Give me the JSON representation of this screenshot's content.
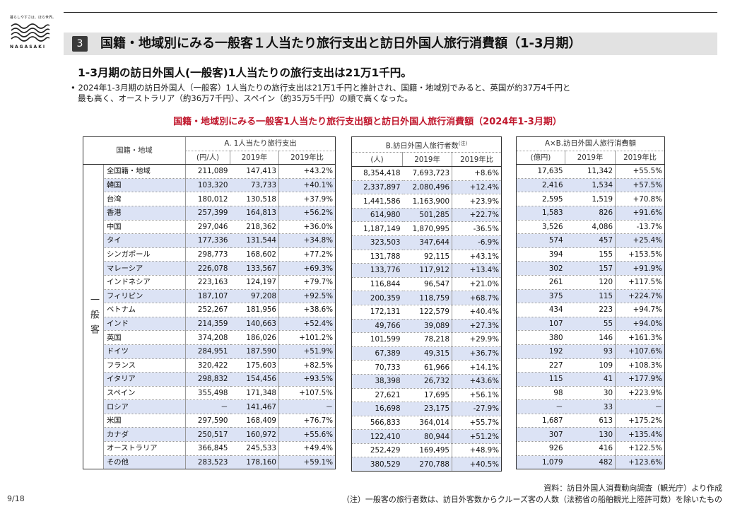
{
  "logo": {
    "tagline": "暮らしやすさは、ほら世界。",
    "wordmark": "NAGASAKI"
  },
  "section": {
    "number": "3",
    "title": "国籍・地域別にみる一般客１人当たり旅行支出と訪日外国人旅行消費額（1-3月期）"
  },
  "headline": "1-3月期の訪日外国人(一般客)1人当たりの旅行支出は21万1千円。",
  "bullet": {
    "line1": "• 2024年1-3月期の訪日外国人（一般客）1人当たりの旅行支出は21万1千円と推計され、国籍・地域別でみると、英国が約37万4千円と",
    "line2": "最も高く、オーストラリア（約36万7千円）、スペイン（約35万5千円）の順で高くなった。"
  },
  "table_title": "国籍・地域別にみる一般客1人当たり旅行支出額と訪日外国人旅行消費額（2024年1-3月期）",
  "table": {
    "category_header": "国籍・地域",
    "group_label": "一般客",
    "blockA": {
      "title": "A.  1人当たり旅行支出",
      "unit": "(円/人)",
      "col2019": "2019年",
      "colRatio": "2019年比"
    },
    "blockB": {
      "title": "B.訪日外国人旅行者数",
      "note": "(注)",
      "unit": "(人)",
      "col2019": "2019年",
      "colRatio": "2019年比"
    },
    "blockC": {
      "title": "A×B.訪日外国人旅行消費額",
      "unit": "(億円)",
      "col2019": "2019年",
      "colRatio": "2019年比"
    },
    "rows": [
      {
        "name": "全国籍・地域",
        "hl": false,
        "a": [
          "211,089",
          "147,413",
          "+43.2%"
        ],
        "b": [
          "8,354,418",
          "7,693,723",
          "+8.6%"
        ],
        "c": [
          "17,635",
          "11,342",
          "+55.5%"
        ]
      },
      {
        "name": "韓国",
        "hl": true,
        "a": [
          "103,320",
          "73,733",
          "+40.1%"
        ],
        "b": [
          "2,337,897",
          "2,080,496",
          "+12.4%"
        ],
        "c": [
          "2,416",
          "1,534",
          "+57.5%"
        ]
      },
      {
        "name": "台湾",
        "hl": false,
        "a": [
          "180,012",
          "130,518",
          "+37.9%"
        ],
        "b": [
          "1,441,586",
          "1,163,900",
          "+23.9%"
        ],
        "c": [
          "2,595",
          "1,519",
          "+70.8%"
        ]
      },
      {
        "name": "香港",
        "hl": true,
        "a": [
          "257,399",
          "164,813",
          "+56.2%"
        ],
        "b": [
          "614,980",
          "501,285",
          "+22.7%"
        ],
        "c": [
          "1,583",
          "826",
          "+91.6%"
        ]
      },
      {
        "name": "中国",
        "hl": false,
        "a": [
          "297,046",
          "218,362",
          "+36.0%"
        ],
        "b": [
          "1,187,149",
          "1,870,995",
          "-36.5%"
        ],
        "c": [
          "3,526",
          "4,086",
          "-13.7%"
        ]
      },
      {
        "name": "タイ",
        "hl": true,
        "a": [
          "177,336",
          "131,544",
          "+34.8%"
        ],
        "b": [
          "323,503",
          "347,644",
          "-6.9%"
        ],
        "c": [
          "574",
          "457",
          "+25.4%"
        ]
      },
      {
        "name": "シンガポール",
        "hl": false,
        "a": [
          "298,773",
          "168,602",
          "+77.2%"
        ],
        "b": [
          "131,788",
          "92,115",
          "+43.1%"
        ],
        "c": [
          "394",
          "155",
          "+153.5%"
        ]
      },
      {
        "name": "マレーシア",
        "hl": true,
        "a": [
          "226,078",
          "133,567",
          "+69.3%"
        ],
        "b": [
          "133,776",
          "117,912",
          "+13.4%"
        ],
        "c": [
          "302",
          "157",
          "+91.9%"
        ]
      },
      {
        "name": "インドネシア",
        "hl": false,
        "a": [
          "223,163",
          "124,197",
          "+79.7%"
        ],
        "b": [
          "116,844",
          "96,547",
          "+21.0%"
        ],
        "c": [
          "261",
          "120",
          "+117.5%"
        ]
      },
      {
        "name": "フィリピン",
        "hl": true,
        "a": [
          "187,107",
          "97,208",
          "+92.5%"
        ],
        "b": [
          "200,359",
          "118,759",
          "+68.7%"
        ],
        "c": [
          "375",
          "115",
          "+224.7%"
        ]
      },
      {
        "name": "ベトナム",
        "hl": false,
        "a": [
          "252,267",
          "181,956",
          "+38.6%"
        ],
        "b": [
          "172,131",
          "122,579",
          "+40.4%"
        ],
        "c": [
          "434",
          "223",
          "+94.7%"
        ]
      },
      {
        "name": "インド",
        "hl": true,
        "a": [
          "214,359",
          "140,663",
          "+52.4%"
        ],
        "b": [
          "49,766",
          "39,089",
          "+27.3%"
        ],
        "c": [
          "107",
          "55",
          "+94.0%"
        ]
      },
      {
        "name": "英国",
        "hl": false,
        "a": [
          "374,208",
          "186,026",
          "+101.2%"
        ],
        "b": [
          "101,599",
          "78,218",
          "+29.9%"
        ],
        "c": [
          "380",
          "146",
          "+161.3%"
        ]
      },
      {
        "name": "ドイツ",
        "hl": true,
        "a": [
          "284,951",
          "187,590",
          "+51.9%"
        ],
        "b": [
          "67,389",
          "49,315",
          "+36.7%"
        ],
        "c": [
          "192",
          "93",
          "+107.6%"
        ]
      },
      {
        "name": "フランス",
        "hl": false,
        "a": [
          "320,422",
          "175,603",
          "+82.5%"
        ],
        "b": [
          "70,733",
          "61,966",
          "+14.1%"
        ],
        "c": [
          "227",
          "109",
          "+108.3%"
        ]
      },
      {
        "name": "イタリア",
        "hl": true,
        "a": [
          "298,832",
          "154,456",
          "+93.5%"
        ],
        "b": [
          "38,398",
          "26,732",
          "+43.6%"
        ],
        "c": [
          "115",
          "41",
          "+177.9%"
        ]
      },
      {
        "name": "スペイン",
        "hl": false,
        "a": [
          "355,498",
          "171,348",
          "+107.5%"
        ],
        "b": [
          "27,621",
          "17,695",
          "+56.1%"
        ],
        "c": [
          "98",
          "30",
          "+223.9%"
        ]
      },
      {
        "name": "ロシア",
        "hl": true,
        "a": [
          "－",
          "141,467",
          "－"
        ],
        "b": [
          "16,698",
          "23,175",
          "-27.9%"
        ],
        "c": [
          "－",
          "33",
          "－"
        ]
      },
      {
        "name": "米国",
        "hl": false,
        "a": [
          "297,590",
          "168,409",
          "+76.7%"
        ],
        "b": [
          "566,833",
          "364,014",
          "+55.7%"
        ],
        "c": [
          "1,687",
          "613",
          "+175.2%"
        ]
      },
      {
        "name": "カナダ",
        "hl": true,
        "a": [
          "250,517",
          "160,972",
          "+55.6%"
        ],
        "b": [
          "122,410",
          "80,944",
          "+51.2%"
        ],
        "c": [
          "307",
          "130",
          "+135.4%"
        ]
      },
      {
        "name": "オーストラリア",
        "hl": false,
        "a": [
          "366,845",
          "245,533",
          "+49.4%"
        ],
        "b": [
          "252,429",
          "169,495",
          "+48.9%"
        ],
        "c": [
          "926",
          "416",
          "+122.5%"
        ]
      },
      {
        "name": "その他",
        "hl": true,
        "a": [
          "283,523",
          "178,160",
          "+59.1%"
        ],
        "b": [
          "380,529",
          "270,788",
          "+40.5%"
        ],
        "c": [
          "1,079",
          "482",
          "+123.6%"
        ]
      }
    ]
  },
  "footer": {
    "page": "9/18",
    "source": "資料：訪日外国人消費動向調査（観光庁）より作成",
    "note": "（注）一般客の旅行者数は、訪日外客数からクルーズ客の人数（法務省の船舶観光上陸許可数）を除いたもの"
  },
  "colors": {
    "highlight": "#dce3f5",
    "title_red": "#c0172c",
    "section_bar": "#e2e2e2"
  }
}
